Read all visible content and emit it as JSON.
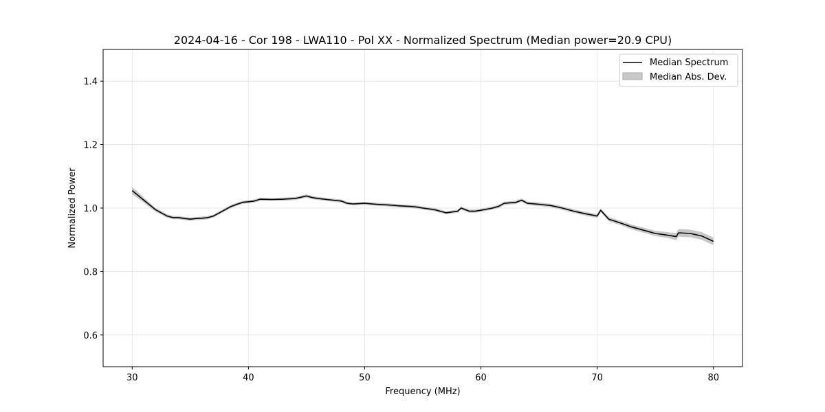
{
  "chart_data": {
    "type": "line",
    "title": "2024-04-16 - Cor 198 - LWA110 - Pol XX - Normalized Spectrum (Median power=20.9 CPU)",
    "xlabel": "Frequency (MHz)",
    "ylabel": "Normalized Power",
    "xlim": [
      27.5,
      82.5
    ],
    "ylim": [
      0.5,
      1.5
    ],
    "xticks": [
      30,
      40,
      50,
      60,
      70,
      80
    ],
    "xtick_labels": [
      "30",
      "40",
      "50",
      "60",
      "70",
      "80"
    ],
    "yticks": [
      0.6,
      0.8,
      1.0,
      1.2,
      1.4
    ],
    "ytick_labels": [
      "0.6",
      "0.8",
      "1.0",
      "1.2",
      "1.4"
    ],
    "grid": true,
    "legend_position": "top-right",
    "series": [
      {
        "name": "Median Spectrum",
        "color": "#000000",
        "x": [
          30,
          30.5,
          31,
          31.5,
          32,
          32.5,
          33,
          33.5,
          34,
          34.5,
          35,
          35.5,
          36,
          36.5,
          37,
          37.5,
          38,
          38.5,
          39,
          39.5,
          40,
          40.5,
          41,
          42,
          43,
          44,
          44.5,
          45,
          45.5,
          46,
          47,
          48,
          48.5,
          49,
          50,
          51,
          52,
          53,
          54,
          54.5,
          55,
          56,
          56.5,
          57,
          58,
          58.3,
          59,
          59.5,
          60,
          61,
          61.5,
          62,
          63,
          63.5,
          64,
          65,
          66,
          67,
          68,
          69,
          70,
          70.3,
          71,
          72,
          73,
          74,
          75,
          76,
          76.8,
          77,
          78,
          79,
          80
        ],
        "y": [
          1.055,
          1.04,
          1.025,
          1.01,
          0.995,
          0.985,
          0.975,
          0.97,
          0.97,
          0.967,
          0.965,
          0.967,
          0.968,
          0.97,
          0.975,
          0.985,
          0.995,
          1.005,
          1.012,
          1.018,
          1.02,
          1.022,
          1.028,
          1.027,
          1.028,
          1.03,
          1.034,
          1.038,
          1.033,
          1.03,
          1.026,
          1.022,
          1.015,
          1.013,
          1.015,
          1.012,
          1.01,
          1.007,
          1.005,
          1.003,
          1.0,
          0.995,
          0.99,
          0.985,
          0.99,
          1.0,
          0.99,
          0.99,
          0.993,
          1.0,
          1.005,
          1.015,
          1.018,
          1.025,
          1.015,
          1.012,
          1.008,
          1.0,
          0.99,
          0.982,
          0.975,
          0.993,
          0.965,
          0.953,
          0.94,
          0.93,
          0.92,
          0.915,
          0.91,
          0.922,
          0.92,
          0.912,
          0.895
        ]
      },
      {
        "name": "Median Abs. Dev.",
        "color": "#c8c8c8",
        "type": "band",
        "x": [
          30,
          31,
          32,
          34,
          40,
          50,
          60,
          70,
          74,
          76,
          77,
          78,
          80
        ],
        "halfwidth": [
          0.012,
          0.008,
          0.006,
          0.005,
          0.005,
          0.005,
          0.005,
          0.006,
          0.008,
          0.009,
          0.012,
          0.012,
          0.012
        ]
      }
    ]
  }
}
